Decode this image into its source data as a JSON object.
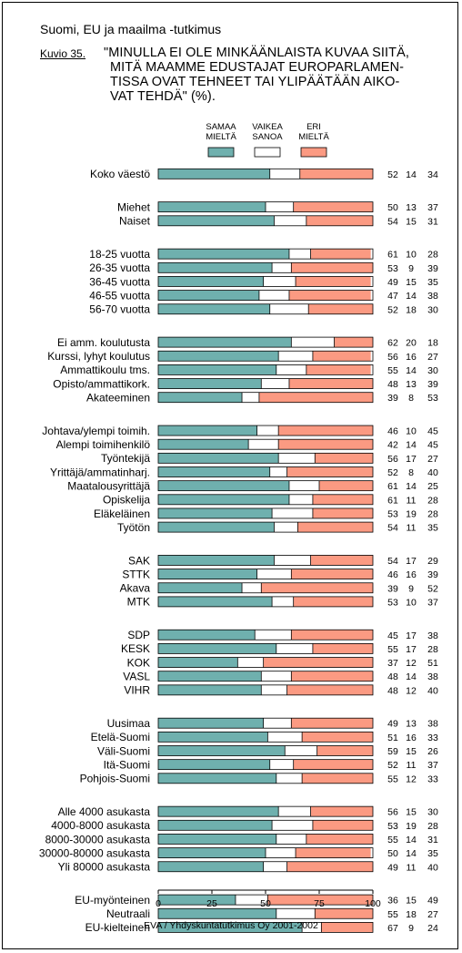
{
  "header": "Suomi, EU ja maailma -tutkimus",
  "figure_label": "Kuvio 35.",
  "title_lines": [
    "\"MINULLA EI OLE MINKÄÄNLAISTA KUVAA SIITÄ,",
    "MITÄ MAAMME EDUSTAJAT EUROPARLAMEN-",
    "TISSA OVAT TEHNEET TAI YLIPÄÄTÄÄN AIKO-",
    "VAT TEHDÄ\" (%)."
  ],
  "source": "EVA / Yhdyskuntatutkimus Oy 2001-2002",
  "colors": {
    "agree": "#6fb0ae",
    "neutral": "#ffffff",
    "disagree": "#fb9a82",
    "outline": "#000000"
  },
  "chart_data": {
    "type": "bar",
    "stacked": true,
    "orientation": "horizontal",
    "xlim": [
      0,
      100
    ],
    "xticks": [
      "0",
      "25",
      "50",
      "75",
      "100"
    ],
    "legend": [
      {
        "key": "agree",
        "lines": [
          "SAMAA",
          "MIELTÄ"
        ]
      },
      {
        "key": "neutral",
        "lines": [
          "VAIKEA",
          "SANOA"
        ]
      },
      {
        "key": "disagree",
        "lines": [
          "ERI",
          "MIELTÄ"
        ]
      }
    ],
    "groups": [
      {
        "rows": [
          {
            "label": "Koko väestö",
            "values": [
              52,
              14,
              34
            ]
          }
        ]
      },
      {
        "rows": [
          {
            "label": "Miehet",
            "values": [
              50,
              13,
              37
            ]
          },
          {
            "label": "Naiset",
            "values": [
              54,
              15,
              31
            ]
          }
        ]
      },
      {
        "rows": [
          {
            "label": "18-25 vuotta",
            "values": [
              61,
              10,
              28
            ]
          },
          {
            "label": "26-35 vuotta",
            "values": [
              53,
              9,
              39
            ]
          },
          {
            "label": "36-45 vuotta",
            "values": [
              49,
              15,
              35
            ]
          },
          {
            "label": "46-55 vuotta",
            "values": [
              47,
              14,
              38
            ]
          },
          {
            "label": "56-70 vuotta",
            "values": [
              52,
              18,
              30
            ]
          }
        ]
      },
      {
        "rows": [
          {
            "label": "Ei amm. koulutusta",
            "values": [
              62,
              20,
              18
            ]
          },
          {
            "label": "Kurssi, lyhyt koulutus",
            "values": [
              56,
              16,
              27
            ]
          },
          {
            "label": "Ammattikoulu tms.",
            "values": [
              55,
              14,
              30
            ]
          },
          {
            "label": "Opisto/ammattikork.",
            "values": [
              48,
              13,
              39
            ]
          },
          {
            "label": "Akateeminen",
            "values": [
              39,
              8,
              53
            ]
          }
        ]
      },
      {
        "rows": [
          {
            "label": "Johtava/ylempi toimih.",
            "values": [
              46,
              10,
              45
            ]
          },
          {
            "label": "Alempi toimihenkilö",
            "values": [
              42,
              14,
              45
            ]
          },
          {
            "label": "Työntekijä",
            "values": [
              56,
              17,
              27
            ]
          },
          {
            "label": "Yrittäjä/ammatinharj.",
            "values": [
              52,
              8,
              40
            ]
          },
          {
            "label": "Maatalousyrittäjä",
            "values": [
              61,
              14,
              25
            ]
          },
          {
            "label": "Opiskelija",
            "values": [
              61,
              11,
              28
            ]
          },
          {
            "label": "Eläkeläinen",
            "values": [
              53,
              19,
              28
            ]
          },
          {
            "label": "Työtön",
            "values": [
              54,
              11,
              35
            ]
          }
        ]
      },
      {
        "rows": [
          {
            "label": "SAK",
            "values": [
              54,
              17,
              29
            ]
          },
          {
            "label": "STTK",
            "values": [
              46,
              16,
              39
            ]
          },
          {
            "label": "Akava",
            "values": [
              39,
              9,
              52
            ]
          },
          {
            "label": "MTK",
            "values": [
              53,
              10,
              37
            ]
          }
        ]
      },
      {
        "rows": [
          {
            "label": "SDP",
            "values": [
              45,
              17,
              38
            ]
          },
          {
            "label": "KESK",
            "values": [
              55,
              17,
              28
            ]
          },
          {
            "label": "KOK",
            "values": [
              37,
              12,
              51
            ]
          },
          {
            "label": "VASL",
            "values": [
              48,
              14,
              38
            ]
          },
          {
            "label": "VIHR",
            "values": [
              48,
              12,
              40
            ]
          }
        ]
      },
      {
        "rows": [
          {
            "label": "Uusimaa",
            "values": [
              49,
              13,
              38
            ]
          },
          {
            "label": "Etelä-Suomi",
            "values": [
              51,
              16,
              33
            ]
          },
          {
            "label": "Väli-Suomi",
            "values": [
              59,
              15,
              26
            ]
          },
          {
            "label": "Itä-Suomi",
            "values": [
              52,
              11,
              37
            ]
          },
          {
            "label": "Pohjois-Suomi",
            "values": [
              55,
              12,
              33
            ]
          }
        ]
      },
      {
        "rows": [
          {
            "label": "Alle 4000 asukasta",
            "values": [
              56,
              15,
              30
            ]
          },
          {
            "label": "4000-8000 asukasta",
            "values": [
              53,
              19,
              28
            ]
          },
          {
            "label": "8000-30000 asukasta",
            "values": [
              55,
              14,
              31
            ]
          },
          {
            "label": "30000-80000 asukasta",
            "values": [
              50,
              14,
              35
            ]
          },
          {
            "label": "Yli 80000 asukasta",
            "values": [
              49,
              11,
              40
            ]
          }
        ]
      },
      {
        "rows": [
          {
            "label": "EU-myönteinen",
            "values": [
              36,
              15,
              49
            ]
          },
          {
            "label": "Neutraali",
            "values": [
              55,
              18,
              27
            ]
          },
          {
            "label": "EU-kielteinen",
            "values": [
              67,
              9,
              24
            ]
          }
        ]
      }
    ]
  }
}
